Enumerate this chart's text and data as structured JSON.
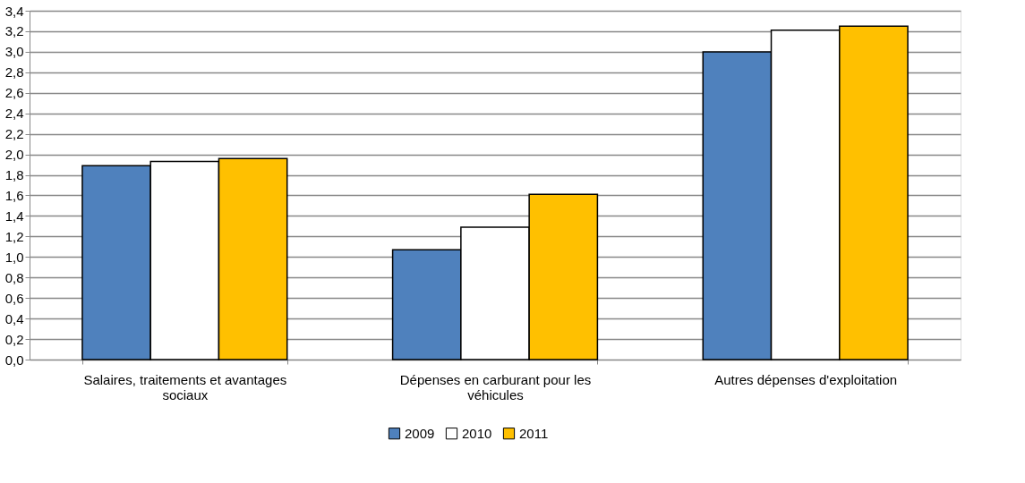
{
  "chart_data": {
    "type": "bar",
    "categories": [
      "Salaires, traitements et avantages sociaux",
      "Dépenses en carburant pour les véhicules",
      "Autres dépenses d'exploitation"
    ],
    "series": [
      {
        "name": "2009",
        "color": "#4f81bd",
        "values": [
          1.89,
          1.07,
          3.0
        ]
      },
      {
        "name": "2010",
        "color": "#ffffff",
        "values": [
          1.93,
          1.29,
          3.21
        ]
      },
      {
        "name": "2011",
        "color": "#ffc000",
        "values": [
          1.96,
          1.61,
          3.25
        ]
      }
    ],
    "ylim": [
      0,
      3.4
    ],
    "yticks": [
      {
        "value": 0,
        "label": "0,0"
      },
      {
        "value": 0.2,
        "label": "0,2"
      },
      {
        "value": 0.4,
        "label": "0,4"
      },
      {
        "value": 0.6,
        "label": "0,6"
      },
      {
        "value": 0.8,
        "label": "0,8"
      },
      {
        "value": 1.0,
        "label": "1,0"
      },
      {
        "value": 1.2,
        "label": "1,2"
      },
      {
        "value": 1.4,
        "label": "1,4"
      },
      {
        "value": 1.6,
        "label": "1,6"
      },
      {
        "value": 1.8,
        "label": "1,8"
      },
      {
        "value": 2.0,
        "label": "2,0"
      },
      {
        "value": 2.2,
        "label": "2,2"
      },
      {
        "value": 2.4,
        "label": "2,4"
      },
      {
        "value": 2.6,
        "label": "2,6"
      },
      {
        "value": 2.8,
        "label": "2,8"
      },
      {
        "value": 3.0,
        "label": "3,0"
      },
      {
        "value": 3.2,
        "label": "3,2"
      },
      {
        "value": 3.4,
        "label": "3,4"
      }
    ],
    "grid": "y",
    "legend": "bottom"
  }
}
